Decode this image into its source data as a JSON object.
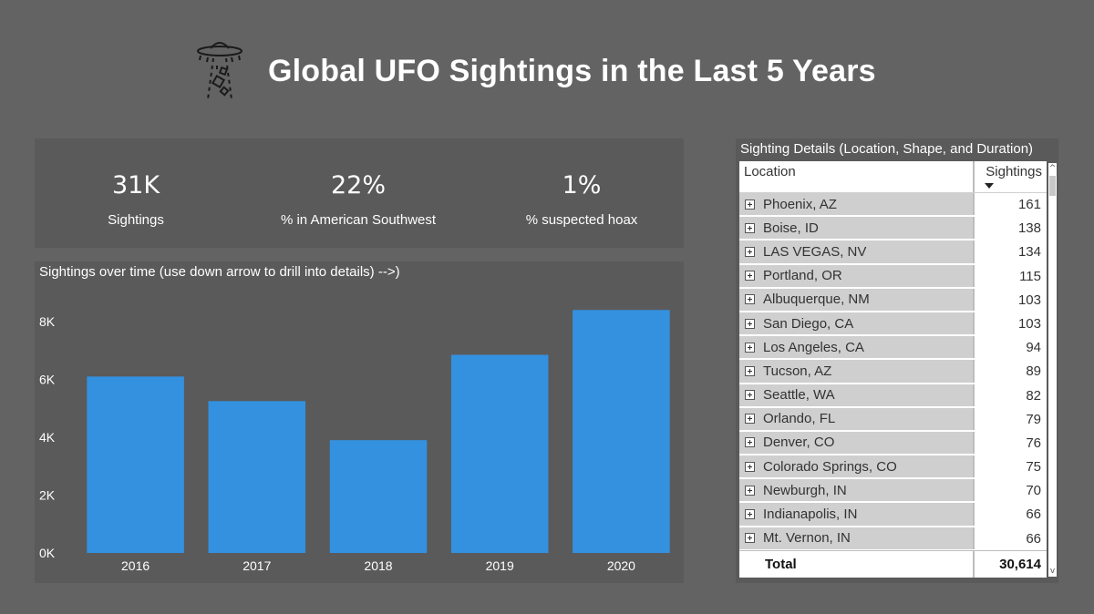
{
  "header": {
    "title": "Global UFO Sightings in the Last 5 Years",
    "icon": "ufo-icon"
  },
  "kpis": [
    {
      "value": "31K",
      "label": "Sightings"
    },
    {
      "value": "22%",
      "label": "% in American Southwest"
    },
    {
      "value": "1%",
      "label": "% suspected hoax"
    }
  ],
  "chart": {
    "title": "Sightings over time (use down arrow to drill into details) -->)"
  },
  "chart_data": {
    "type": "bar",
    "categories": [
      "2016",
      "2017",
      "2018",
      "2019",
      "2020"
    ],
    "values": [
      6100,
      5250,
      3900,
      6850,
      8400
    ],
    "yticks": [
      "0K",
      "2K",
      "4K",
      "6K",
      "8K"
    ],
    "ylim": [
      0,
      8000
    ],
    "bar_color": "#3391e0",
    "grid": false
  },
  "table": {
    "title": "Sighting Details (Location, Shape, and Duration)",
    "col_location": "Location",
    "col_sightings": "Sightings",
    "rows": [
      {
        "location": "Phoenix, AZ",
        "sightings": "161"
      },
      {
        "location": "Boise, ID",
        "sightings": "138"
      },
      {
        "location": "LAS VEGAS, NV",
        "sightings": "134"
      },
      {
        "location": "Portland, OR",
        "sightings": "115"
      },
      {
        "location": "Albuquerque, NM",
        "sightings": "103"
      },
      {
        "location": "San Diego, CA",
        "sightings": "103"
      },
      {
        "location": "Los Angeles, CA",
        "sightings": "94"
      },
      {
        "location": "Tucson, AZ",
        "sightings": "89"
      },
      {
        "location": "Seattle, WA",
        "sightings": "82"
      },
      {
        "location": "Orlando, FL",
        "sightings": "79"
      },
      {
        "location": "Denver, CO",
        "sightings": "76"
      },
      {
        "location": "Colorado Springs, CO",
        "sightings": "75"
      },
      {
        "location": "Newburgh, IN",
        "sightings": "70"
      },
      {
        "location": "Indianapolis, IN",
        "sightings": "66"
      },
      {
        "location": "Mt. Vernon, IN",
        "sightings": "66"
      }
    ],
    "total_label": "Total",
    "total_value": "30,614",
    "scroll_up_glyph": "^",
    "scroll_down_glyph": "v"
  },
  "colors": {
    "background": "#636363",
    "panel": "#5a5a5a",
    "bar": "#3391e0",
    "row_label_bg": "#cfcfcf"
  }
}
